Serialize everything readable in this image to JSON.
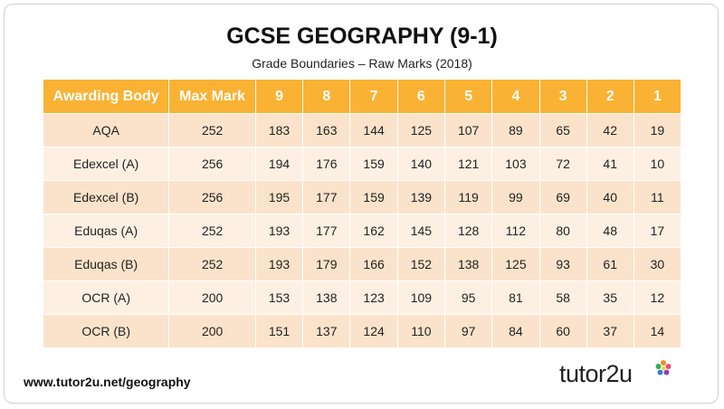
{
  "title": "GCSE GEOGRAPHY (9-1)",
  "subtitle": "Grade Boundaries – Raw Marks (2018)",
  "table": {
    "headers": [
      "Awarding Body",
      "Max Mark",
      "9",
      "8",
      "7",
      "6",
      "5",
      "4",
      "3",
      "2",
      "1"
    ],
    "rows": [
      [
        "AQA",
        "252",
        "183",
        "163",
        "144",
        "125",
        "107",
        "89",
        "65",
        "42",
        "19"
      ],
      [
        "Edexcel (A)",
        "256",
        "194",
        "176",
        "159",
        "140",
        "121",
        "103",
        "72",
        "41",
        "10"
      ],
      [
        "Edexcel (B)",
        "256",
        "195",
        "177",
        "159",
        "139",
        "119",
        "99",
        "69",
        "40",
        "11"
      ],
      [
        "Eduqas (A)",
        "252",
        "193",
        "177",
        "162",
        "145",
        "128",
        "112",
        "80",
        "48",
        "17"
      ],
      [
        "Eduqas (B)",
        "252",
        "193",
        "179",
        "166",
        "152",
        "138",
        "125",
        "93",
        "61",
        "30"
      ],
      [
        "OCR (A)",
        "200",
        "153",
        "138",
        "123",
        "109",
        "95",
        "81",
        "58",
        "35",
        "12"
      ],
      [
        "OCR (B)",
        "200",
        "151",
        "137",
        "124",
        "110",
        "97",
        "84",
        "60",
        "37",
        "14"
      ]
    ]
  },
  "footer": {
    "url": "www.tutor2u.net/geography",
    "logo_text": "tutor2u"
  },
  "colors": {
    "header": "#f9b233",
    "row_odd": "#fbe3cb",
    "row_even": "#fdf0e3"
  },
  "icons": {
    "logo_icon": "flower-icon"
  }
}
